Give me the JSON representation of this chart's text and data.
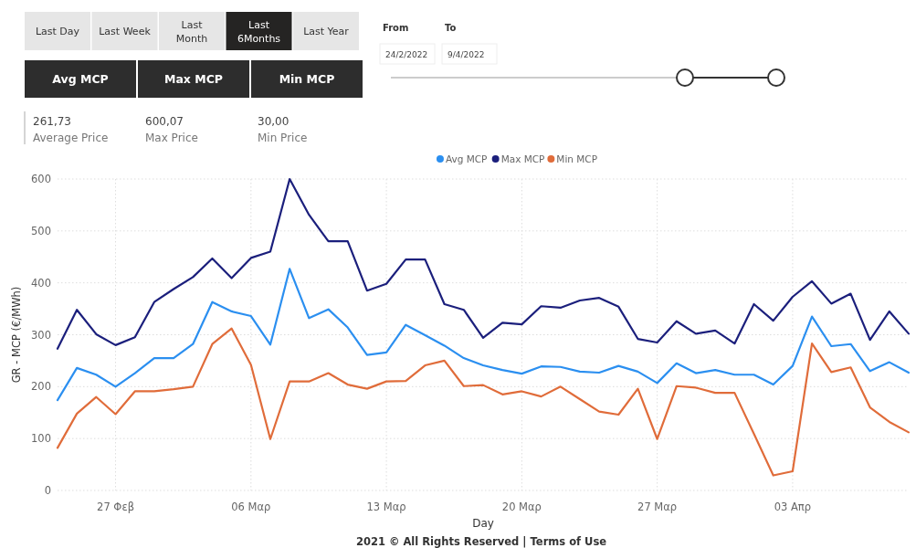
{
  "chart_data": [
    {
      "type": "other",
      "annotations": [
        "Last Day",
        "Last Week",
        "Last Month",
        "Last 6Months",
        "Last Year",
        "From",
        "To",
        "24/2/2022",
        "9/4/2022",
        "Avg MCP",
        "Max MCP",
        "Min MCP",
        "261,73",
        "Average Price",
        "600,07",
        "Max Price",
        "30,00",
        "Min Price"
      ]
    },
    {
      "type": "line",
      "xlabel": "Day",
      "ylabel": "GR - MCP (€/MWh)",
      "annotations": [
        "2021 © All Rights Reserved | Terms of Use"
      ],
      "x": [
        "2022-02-24",
        "2022-02-25",
        "2022-02-26",
        "2022-02-27",
        "2022-02-28",
        "2022-03-01",
        "2022-03-02",
        "2022-03-03",
        "2022-03-04",
        "2022-03-05",
        "2022-03-06",
        "2022-03-07",
        "2022-03-08",
        "2022-03-09",
        "2022-03-10",
        "2022-03-11",
        "2022-03-12",
        "2022-03-13",
        "2022-03-14",
        "2022-03-15",
        "2022-03-16",
        "2022-03-17",
        "2022-03-18",
        "2022-03-19",
        "2022-03-20",
        "2022-03-21",
        "2022-03-22",
        "2022-03-23",
        "2022-03-24",
        "2022-03-25",
        "2022-03-26",
        "2022-03-27",
        "2022-03-28",
        "2022-03-29",
        "2022-03-30",
        "2022-03-31",
        "2022-04-01",
        "2022-04-02",
        "2022-04-03",
        "2022-04-04",
        "2022-04-05",
        "2022-04-06",
        "2022-04-07",
        "2022-04-08",
        "2022-04-09"
      ],
      "series": [
        {
          "name": "Avg MCP",
          "color": "#2b8ff0",
          "values": [
            174,
            236,
            223,
            200,
            226,
            255,
            255,
            282,
            363,
            345,
            336,
            281,
            427,
            332,
            349,
            314,
            261,
            266,
            319,
            299,
            279,
            255,
            241,
            232,
            225,
            239,
            238,
            229,
            227,
            240,
            229,
            207,
            245,
            226,
            232,
            223,
            223,
            204,
            240,
            335,
            278,
            282,
            230,
            247,
            227
          ]
        },
        {
          "name": "Max MCP",
          "color": "#1b1f7c",
          "values": [
            273,
            348,
            301,
            280,
            295,
            363,
            388,
            411,
            447,
            409,
            448,
            460,
            600,
            531,
            480,
            480,
            385,
            398,
            445,
            445,
            359,
            348,
            294,
            323,
            320,
            355,
            352,
            366,
            371,
            354,
            292,
            285,
            326,
            302,
            308,
            283,
            359,
            327,
            373,
            403,
            360,
            379,
            290,
            345,
            302
          ]
        },
        {
          "name": "Min MCP",
          "color": "#e06c3a",
          "values": [
            82,
            148,
            180,
            147,
            191,
            191,
            195,
            200,
            282,
            312,
            242,
            99,
            210,
            210,
            226,
            204,
            196,
            210,
            211,
            241,
            250,
            201,
            203,
            185,
            191,
            181,
            200,
            176,
            152,
            146,
            196,
            99,
            201,
            198,
            188,
            188,
            109,
            29,
            37,
            283,
            228,
            237,
            160,
            132,
            112
          ]
        }
      ],
      "xlim": [
        "2022-02-24",
        "2022-04-09"
      ],
      "xticks": [
        {
          "value": "2022-02-27",
          "label": "27 Φεβ"
        },
        {
          "value": "2022-03-06",
          "label": "06 Μαρ"
        },
        {
          "value": "2022-03-13",
          "label": "13 Μαρ"
        },
        {
          "value": "2022-03-20",
          "label": "20 Μαρ"
        },
        {
          "value": "2022-03-27",
          "label": "27 Μαρ"
        },
        {
          "value": "2022-04-03",
          "label": "03 Απρ"
        }
      ],
      "ylim": [
        0,
        600
      ],
      "yticks": [
        0,
        100,
        200,
        300,
        400,
        500,
        600
      ],
      "grid": true,
      "legend": "top",
      "line_style": "solid",
      "marker": "none"
    }
  ]
}
